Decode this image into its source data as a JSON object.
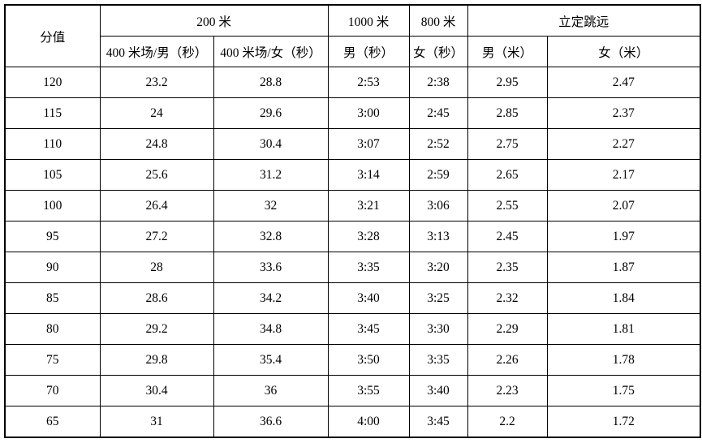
{
  "table": {
    "header": {
      "score": "分值",
      "m200": "200 米",
      "m200_male_sub": "400 米场/男（秒）",
      "m200_female_sub": "400 米场/女（秒）",
      "m1000": "1000 米",
      "m1000_male_sub": "男（秒）",
      "m800": "800 米",
      "m800_female_sub": "女（秒）",
      "long_jump": "立定跳远",
      "jump_male_sub": "男（米）",
      "jump_female_sub": "女（米）"
    },
    "rows": [
      [
        "120",
        "23.2",
        "28.8",
        "2:53",
        "2:38",
        "2.95",
        "2.47"
      ],
      [
        "115",
        "24",
        "29.6",
        "3:00",
        "2:45",
        "2.85",
        "2.37"
      ],
      [
        "110",
        "24.8",
        "30.4",
        "3:07",
        "2:52",
        "2.75",
        "2.27"
      ],
      [
        "105",
        "25.6",
        "31.2",
        "3:14",
        "2:59",
        "2.65",
        "2.17"
      ],
      [
        "100",
        "26.4",
        "32",
        "3:21",
        "3:06",
        "2.55",
        "2.07"
      ],
      [
        "95",
        "27.2",
        "32.8",
        "3:28",
        "3:13",
        "2.45",
        "1.97"
      ],
      [
        "90",
        "28",
        "33.6",
        "3:35",
        "3:20",
        "2.35",
        "1.87"
      ],
      [
        "85",
        "28.6",
        "34.2",
        "3:40",
        "3:25",
        "2.32",
        "1.84"
      ],
      [
        "80",
        "29.2",
        "34.8",
        "3:45",
        "3:30",
        "2.29",
        "1.81"
      ],
      [
        "75",
        "29.8",
        "35.4",
        "3:50",
        "3:35",
        "2.26",
        "1.78"
      ],
      [
        "70",
        "30.4",
        "36",
        "3:55",
        "3:40",
        "2.23",
        "1.75"
      ],
      [
        "65",
        "31",
        "36.6",
        "4:00",
        "3:45",
        "2.2",
        "1.72"
      ]
    ],
    "colors": {
      "border": "#000000",
      "text": "#000000",
      "background": "#ffffff"
    }
  }
}
